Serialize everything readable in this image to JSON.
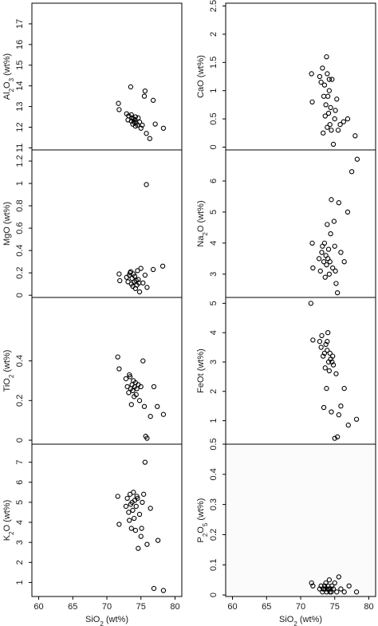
{
  "chart_data": [
    {
      "type": "scatter",
      "ylabel": "Al2O3 (wt%)",
      "ylabel_parts": [
        "Al",
        "2",
        "O",
        "3",
        " (wt%)"
      ],
      "xlim": [
        59,
        81
      ],
      "ylim": [
        10.9,
        18
      ],
      "xticks": [],
      "yticks": [
        11,
        12,
        13,
        14,
        15,
        16,
        17
      ],
      "x": [
        71.7,
        71.8,
        72.9,
        73.1,
        73.2,
        73.5,
        73.6,
        73.7,
        73.8,
        73.9,
        74.0,
        74.1,
        74.2,
        74.3,
        74.5,
        74.6,
        74.8,
        75.0,
        75.2,
        75.5,
        75.6,
        75.8,
        76.3,
        76.8,
        77.1,
        78.3,
        73.6,
        74.2
      ],
      "y": [
        13.15,
        12.85,
        12.65,
        12.35,
        12.55,
        13.95,
        12.3,
        12.45,
        12.15,
        12.4,
        12.25,
        12.35,
        12.5,
        12.2,
        12.1,
        12.45,
        12.25,
        11.95,
        12.1,
        13.5,
        13.75,
        11.7,
        11.45,
        13.3,
        12.15,
        11.95,
        12.6,
        12.05
      ]
    },
    {
      "type": "scatter",
      "ylabel": "CaO (wt%)",
      "ylabel_parts": [
        "CaO (wt%)"
      ],
      "xlim": [
        59,
        81
      ],
      "ylim": [
        -0.05,
        2.55
      ],
      "xticks": [],
      "yticks": [
        0.0,
        0.5,
        1.0,
        1.5,
        2.0,
        2.5
      ],
      "x": [
        71.6,
        71.7,
        72.8,
        73.0,
        73.2,
        73.4,
        73.5,
        73.6,
        73.7,
        73.8,
        73.9,
        74.0,
        74.1,
        74.2,
        74.3,
        74.4,
        74.5,
        74.6,
        74.8,
        75.0,
        75.1,
        75.3,
        75.5,
        75.8,
        76.3,
        76.9,
        78.0,
        73.3,
        73.9,
        74.2
      ],
      "y": [
        1.3,
        0.8,
        1.25,
        1.15,
        1.4,
        0.9,
        1.1,
        0.55,
        0.75,
        1.6,
        1.3,
        0.9,
        0.6,
        1.0,
        0.4,
        0.7,
        0.3,
        1.2,
        0.05,
        0.5,
        0.65,
        0.85,
        0.3,
        0.4,
        0.45,
        0.5,
        0.2,
        0.25,
        0.35,
        1.2
      ]
    },
    {
      "type": "scatter",
      "ylabel": "MgO (wt%)",
      "ylabel_parts": [
        "MgO (wt%)"
      ],
      "xlim": [
        59,
        81
      ],
      "ylim": [
        -0.02,
        1.3
      ],
      "xticks": [],
      "yticks": [
        0.0,
        0.2,
        0.4,
        0.6,
        0.8,
        1.0,
        1.2
      ],
      "x": [
        71.8,
        71.9,
        72.9,
        73.1,
        73.3,
        73.4,
        73.6,
        73.7,
        73.8,
        73.9,
        74.0,
        74.1,
        74.2,
        74.3,
        74.4,
        74.5,
        74.6,
        74.8,
        75.0,
        75.3,
        75.6,
        75.9,
        76.8,
        78.2,
        73.5,
        74.7
      ],
      "y": [
        0.19,
        0.13,
        0.16,
        0.12,
        0.18,
        0.2,
        0.1,
        0.15,
        0.08,
        0.19,
        0.12,
        0.17,
        0.06,
        0.13,
        0.09,
        0.22,
        0.14,
        0.03,
        0.24,
        0.11,
        0.18,
        0.07,
        0.23,
        0.26,
        0.21,
        0.11
      ],
      "outlier_index": 1,
      "extra_x": [
        75.8
      ],
      "extra_y": [
        0.99
      ]
    },
    {
      "type": "scatter",
      "ylabel": "Na2O (wt%)",
      "ylabel_parts": [
        "Na",
        "2",
        "O (wt%)"
      ],
      "xlim": [
        59,
        81
      ],
      "ylim": [
        2.25,
        7.0
      ],
      "xticks": [],
      "yticks": [
        3,
        4,
        5,
        6
      ],
      "x": [
        71.7,
        71.8,
        72.7,
        72.9,
        73.1,
        73.2,
        73.4,
        73.5,
        73.6,
        73.7,
        73.8,
        73.9,
        74.0,
        74.1,
        74.2,
        74.3,
        74.5,
        74.7,
        74.9,
        75.0,
        75.2,
        75.4,
        75.6,
        75.9,
        76.4,
        76.9,
        77.5,
        78.3,
        74.4,
        75.1
      ],
      "y": [
        4.0,
        3.2,
        3.5,
        3.1,
        3.7,
        3.9,
        3.4,
        4.0,
        2.9,
        3.6,
        3.3,
        4.6,
        3.5,
        3.8,
        3.0,
        3.4,
        5.4,
        3.2,
        4.7,
        3.9,
        2.7,
        2.4,
        5.3,
        3.7,
        3.4,
        5.0,
        6.3,
        6.7,
        4.3,
        3.1
      ]
    },
    {
      "type": "scatter",
      "ylabel": "TiO2 (wt%)",
      "ylabel_parts": [
        "TiO",
        "2",
        " (wt%)"
      ],
      "xlim": [
        59,
        81
      ],
      "ylim": [
        -0.02,
        0.72
      ],
      "xticks": [],
      "yticks": [
        0.0,
        0.2,
        0.4
      ],
      "x": [
        71.6,
        71.8,
        72.8,
        73.0,
        73.2,
        73.4,
        73.5,
        73.6,
        73.7,
        73.8,
        73.9,
        74.0,
        74.1,
        74.2,
        74.3,
        74.4,
        74.6,
        74.8,
        75.0,
        75.3,
        75.5,
        75.7,
        75.9,
        76.4,
        76.9,
        77.4,
        78.3,
        73.3
      ],
      "y": [
        0.42,
        0.36,
        0.31,
        0.27,
        0.24,
        0.32,
        0.26,
        0.18,
        0.28,
        0.25,
        0.3,
        0.22,
        0.27,
        0.29,
        0.23,
        0.26,
        0.28,
        0.2,
        0.27,
        0.4,
        0.17,
        0.02,
        0.01,
        0.12,
        0.27,
        0.17,
        0.13,
        0.33
      ]
    },
    {
      "type": "scatter",
      "ylabel": "FeOt (wt%)",
      "ylabel_parts": [
        "FeOt (wt%)"
      ],
      "xlim": [
        59,
        81
      ],
      "ylim": [
        0.2,
        5.2
      ],
      "xticks": [],
      "yticks": [
        1,
        2,
        3,
        4,
        5
      ],
      "x": [
        71.5,
        71.8,
        72.8,
        73.0,
        73.1,
        73.3,
        73.4,
        73.5,
        73.6,
        73.7,
        73.8,
        73.9,
        74.0,
        74.1,
        74.2,
        74.3,
        74.4,
        74.5,
        74.7,
        74.8,
        75.0,
        75.2,
        75.4,
        75.6,
        75.9,
        76.4,
        77.0,
        78.2,
        73.9,
        74.6
      ],
      "y": [
        5.0,
        3.75,
        3.7,
        3.5,
        3.9,
        3.2,
        1.45,
        3.3,
        2.8,
        3.6,
        2.1,
        3.4,
        4.0,
        3.0,
        2.7,
        3.3,
        3.1,
        1.3,
        3.2,
        2.9,
        0.4,
        2.6,
        0.45,
        1.2,
        1.5,
        2.1,
        0.85,
        1.05,
        3.7,
        3.0
      ]
    },
    {
      "type": "scatter",
      "ylabel": "K2O (wt%)",
      "ylabel_parts": [
        "K",
        "2",
        "O (wt%)"
      ],
      "xlim": [
        59,
        81
      ],
      "ylim": [
        0.3,
        7.9
      ],
      "xticks": [
        60,
        65,
        70,
        75,
        80
      ],
      "yticks": [
        1,
        2,
        3,
        4,
        5,
        6,
        7
      ],
      "xlabel_parts": [
        "SiO",
        "2",
        " (wt%)"
      ],
      "x": [
        71.6,
        71.8,
        72.8,
        73.0,
        73.2,
        73.4,
        73.5,
        73.6,
        73.7,
        73.8,
        73.9,
        74.0,
        74.1,
        74.2,
        74.3,
        74.4,
        74.6,
        74.8,
        75.0,
        75.2,
        75.4,
        75.6,
        75.9,
        76.4,
        76.9,
        77.5,
        78.3,
        73.3,
        74.5,
        75.1
      ],
      "y": [
        5.3,
        3.9,
        4.8,
        5.2,
        4.5,
        5.4,
        4.9,
        3.7,
        5.0,
        4.6,
        5.5,
        4.2,
        5.1,
        3.6,
        4.8,
        5.3,
        2.7,
        4.4,
        3.3,
        5.0,
        5.4,
        7.0,
        2.9,
        4.7,
        0.7,
        3.1,
        0.6,
        4.1,
        5.2,
        3.7
      ]
    },
    {
      "type": "scatter",
      "ylabel": "P2O5 (wt%)",
      "ylabel_parts": [
        "P",
        "2",
        "O",
        "5",
        " (wt%)"
      ],
      "xlim": [
        59,
        81
      ],
      "ylim": [
        -0.005,
        0.5
      ],
      "xticks": [
        60,
        65,
        70,
        75,
        80
      ],
      "yticks": [
        0.0,
        0.1,
        0.2,
        0.3,
        0.4,
        0.5
      ],
      "xlabel_parts": [
        "SiO",
        "2",
        " (wt%)"
      ],
      "x": [
        71.6,
        71.8,
        72.8,
        73.0,
        73.2,
        73.4,
        73.5,
        73.6,
        73.7,
        73.8,
        73.9,
        74.0,
        74.1,
        74.2,
        74.3,
        74.4,
        74.6,
        74.8,
        75.0,
        75.3,
        75.6,
        75.9,
        76.4,
        77.1,
        78.2,
        73.3,
        74.5
      ],
      "y": [
        0.04,
        0.03,
        0.02,
        0.03,
        0.01,
        0.02,
        0.03,
        0.02,
        0.04,
        0.01,
        0.02,
        0.03,
        0.02,
        0.05,
        0.01,
        0.02,
        0.03,
        0.02,
        0.04,
        0.01,
        0.06,
        0.02,
        0.01,
        0.03,
        0.01,
        0.02,
        0.01
      ]
    }
  ]
}
